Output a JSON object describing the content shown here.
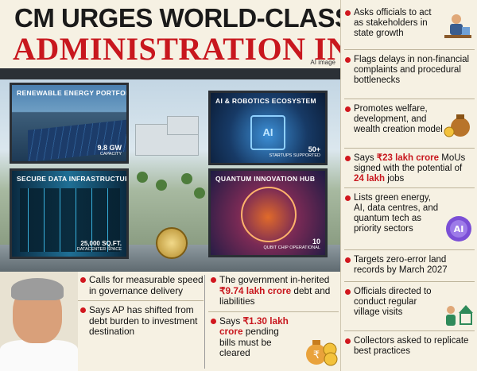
{
  "headline": {
    "line1": "CM URGES WORLD-CLASS",
    "line2": "ADMINISTRATION IN AP",
    "ai_tag": "AI image"
  },
  "screens": {
    "renewable": {
      "title": "RENEWABLE ENERGY PORTFOLIO",
      "stat": "9.8 GW",
      "stat_label": "CAPACITY"
    },
    "robotics": {
      "title": "AI & ROBOTICS ECOSYSTEM",
      "stat": "50+",
      "stat_label": "STARTUPS SUPPORTED"
    },
    "data": {
      "title": "SECURE DATA INFRASTRUCTURE",
      "stat": "25,000 SQ.FT.",
      "stat_label": "DATACENTER SPACE"
    },
    "quantum": {
      "title": "QUANTUM INNOVATION HUB",
      "stat": "10",
      "stat_label": "QUBIT CHIP OPERATIONAL"
    }
  },
  "bottom_left": [
    "Calls for measurable speed in governance delivery",
    "Says AP has shifted from debt burden to investment destination"
  ],
  "bottom_right": {
    "item1_pre": "The government in-herited ",
    "item1_hl": "₹9.74 lakh crore",
    "item1_post": " debt and liabilities",
    "item2_pre": "Says ",
    "item2_hl": "₹1.30 lakh crore",
    "item2_post": " pending bills must be cleared"
  },
  "sidebar": {
    "i1": "Asks officials to act as stakeholders in state growth",
    "i2": "Flags delays in non-financial complaints and procedural bottlenecks",
    "i3": "Promotes welfare, development, and wealth creation model",
    "i4_pre": "Says ",
    "i4_hl1": "₹23 lakh crore",
    "i4_mid": " MoUs signed with the potential of ",
    "i4_hl2": "24 lakh",
    "i4_post": " jobs",
    "i5": "Lists green energy, AI, data centres, and quantum tech as priority sectors",
    "i6": "Targets zero-error land records by March 2027",
    "i7": "Officials directed to conduct regular village visits",
    "i8": "Collectors asked to replicate best practices"
  },
  "icons": {
    "ai_badge": "AI",
    "rupee": "₹"
  },
  "colors": {
    "accent_red": "#c8171e",
    "bullet_red": "#d1171e",
    "background": "#f6f1e3"
  }
}
